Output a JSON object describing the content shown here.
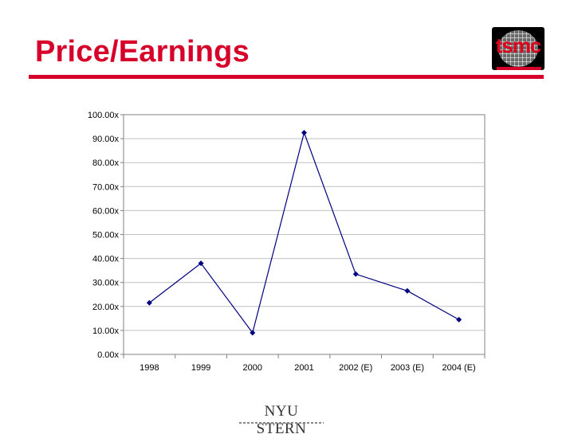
{
  "slide": {
    "title": "Price/Earnings",
    "accent_color": "#d7002a"
  },
  "brand_logo": {
    "text": "tsmc",
    "icon": "wafer-grid-icon"
  },
  "footer_logo": {
    "text": "NYU STERN",
    "icon": "torch-icon"
  },
  "chart_data": {
    "type": "line",
    "categories": [
      "1998",
      "1999",
      "2000",
      "2001",
      "2002 (E)",
      "2003 (E)",
      "2004 (E)"
    ],
    "series": [
      {
        "values": [
          21.5,
          38.0,
          9.0,
          92.5,
          33.5,
          26.5,
          14.5
        ],
        "color": "#000080"
      }
    ],
    "ylim": [
      0,
      100
    ],
    "yticks": [
      0,
      10,
      20,
      30,
      40,
      50,
      60,
      70,
      80,
      90,
      100
    ],
    "ytick_labels": [
      "0.00x",
      "10.00x",
      "20.00x",
      "30.00x",
      "40.00x",
      "50.00x",
      "60.00x",
      "70.00x",
      "80.00x",
      "90.00x",
      "100.00x"
    ],
    "grid": true,
    "legend": "none",
    "title": "",
    "xlabel": "",
    "ylabel": ""
  }
}
